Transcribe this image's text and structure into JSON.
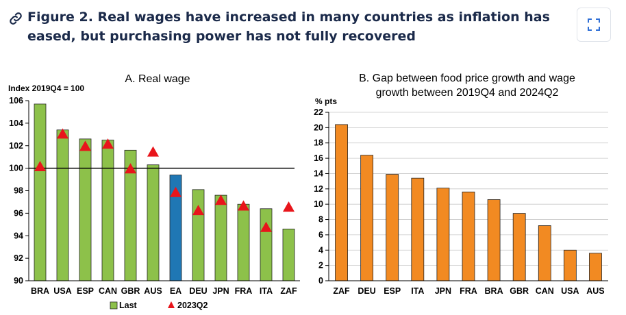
{
  "figure": {
    "title_line1": "Figure 2. Real wages have increased in many countries as inflation has",
    "title_line2": "eased, but purchasing power has not fully recovered"
  },
  "icons": {
    "link": "link-icon",
    "expand": "expand-icon"
  },
  "colors": {
    "green": "#8dc14a",
    "blue": "#1f77b4",
    "red": "#e8151b",
    "orange": "#f28a22",
    "title": "#1b2a4a"
  },
  "chart_data": [
    {
      "type": "bar",
      "title": "A. Real wage",
      "ylabel": "Index 2019Q4 = 100",
      "ylim": [
        90,
        106
      ],
      "yticks": [
        90,
        92,
        94,
        96,
        98,
        100,
        102,
        104,
        106
      ],
      "reference_line": 100,
      "categories": [
        "BRA",
        "USA",
        "ESP",
        "CAN",
        "GBR",
        "AUS",
        "EA",
        "DEU",
        "JPN",
        "FRA",
        "ITA",
        "ZAF"
      ],
      "highlight": {
        "category": "EA",
        "color": "#1f77b4"
      },
      "series": [
        {
          "name": "Last",
          "kind": "bar",
          "color": "#8dc14a",
          "values": [
            105.7,
            103.4,
            102.6,
            102.5,
            101.6,
            100.3,
            99.4,
            98.1,
            97.6,
            96.8,
            96.4,
            94.6
          ]
        },
        {
          "name": "2023Q2",
          "kind": "marker",
          "color": "#e8151b",
          "values": [
            100.1,
            103.0,
            101.9,
            102.1,
            99.9,
            101.4,
            97.8,
            96.2,
            97.1,
            96.6,
            94.7,
            96.5
          ]
        }
      ],
      "legend": "bottom"
    },
    {
      "type": "bar",
      "title_line1": "B. Gap between food price growth and wage",
      "title_line2": "growth between 2019Q4 and 2024Q2",
      "ylabel": "% pts",
      "ylim": [
        0,
        22
      ],
      "yticks": [
        0,
        2,
        4,
        6,
        8,
        10,
        12,
        14,
        16,
        18,
        20,
        22
      ],
      "categories": [
        "ZAF",
        "DEU",
        "ESP",
        "ITA",
        "JPN",
        "FRA",
        "BRA",
        "GBR",
        "CAN",
        "USA",
        "AUS"
      ],
      "values": [
        20.4,
        16.4,
        13.9,
        13.4,
        12.1,
        11.6,
        10.6,
        8.8,
        7.2,
        4.0,
        3.6
      ],
      "color": "#f28a22"
    }
  ]
}
